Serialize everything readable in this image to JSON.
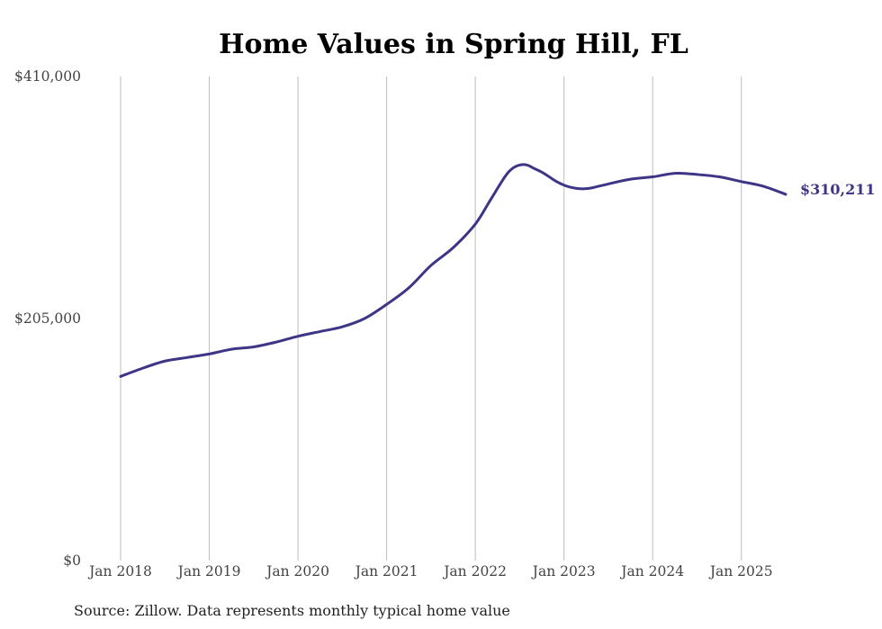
{
  "chart_data": {
    "type": "line",
    "title": "Home Values in Spring Hill, FL",
    "source": "Source: Zillow. Data represents monthly typical home value",
    "y_tick_labels": [
      "$0",
      "$205,000",
      "$410,000"
    ],
    "y_ticks": [
      0,
      205000,
      410000
    ],
    "ylim": [
      0,
      410000
    ],
    "x_tick_labels": [
      "Jan 2018",
      "Jan 2019",
      "Jan 2020",
      "Jan 2021",
      "Jan 2022",
      "Jan 2023",
      "Jan 2024",
      "Jan 2025"
    ],
    "x_ticks": [
      "2018-01",
      "2019-01",
      "2020-01",
      "2021-01",
      "2022-01",
      "2023-01",
      "2024-01",
      "2025-01"
    ],
    "xlim": [
      "2018-01",
      "2025-07"
    ],
    "grid": "vertical",
    "line_color": "#3d3585",
    "end_label": "$310,211",
    "series": [
      {
        "x": [
          "2018-01",
          "2018-04",
          "2018-07",
          "2018-10",
          "2019-01",
          "2019-04",
          "2019-07",
          "2019-10",
          "2020-01",
          "2020-04",
          "2020-07",
          "2020-10",
          "2021-01",
          "2021-04",
          "2021-07",
          "2021-10",
          "2022-01",
          "2022-03",
          "2022-05",
          "2022-06",
          "2022-07",
          "2022-08",
          "2022-09",
          "2022-10",
          "2022-11",
          "2022-12",
          "2023-01",
          "2023-02",
          "2023-03",
          "2023-04",
          "2023-05",
          "2023-07",
          "2023-10",
          "2024-01",
          "2024-04",
          "2024-07",
          "2024-10",
          "2025-01",
          "2025-04",
          "2025-07"
        ],
        "y": [
          156000,
          163000,
          169000,
          172000,
          175000,
          179000,
          181000,
          185000,
          190000,
          194000,
          198000,
          205000,
          217000,
          231000,
          250000,
          265000,
          285000,
          305000,
          325000,
          332000,
          335000,
          335000,
          332000,
          329000,
          325000,
          321000,
          318000,
          316000,
          315000,
          315000,
          316000,
          319000,
          323000,
          325000,
          328000,
          327000,
          325000,
          321000,
          317000,
          310211
        ]
      }
    ]
  }
}
